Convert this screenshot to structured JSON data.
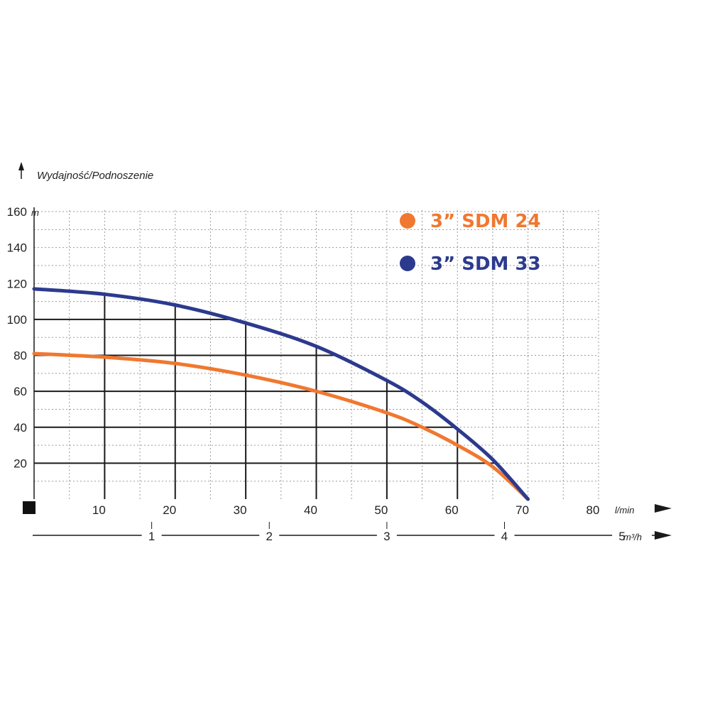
{
  "chart_data": {
    "type": "line",
    "ylabel": "Wydajność/Podnoszenie",
    "y_unit": "m",
    "x_unit": "l/min",
    "x2_unit": "m³/h",
    "xlim": [
      0,
      80
    ],
    "ylim": [
      0,
      160
    ],
    "x_ticks": [
      10,
      20,
      30,
      40,
      50,
      60,
      70,
      80
    ],
    "y_ticks": [
      20,
      40,
      60,
      80,
      100,
      120,
      140,
      160
    ],
    "x2_ticks": [
      1,
      2,
      3,
      4,
      5
    ],
    "x2_scale_lpm_per_unit": 16.667,
    "grid": true,
    "legend_position": "top-right",
    "series": [
      {
        "name": "3” SDM 24",
        "color": "#f07830",
        "x": [
          0,
          10,
          20,
          30,
          40,
          50,
          55,
          60,
          65,
          70
        ],
        "y": [
          81,
          79,
          75.5,
          69,
          60,
          48,
          40,
          30,
          18,
          0
        ]
      },
      {
        "name": "3” SDM 33",
        "color": "#2c3a8e",
        "x": [
          0,
          10,
          20,
          30,
          40,
          50,
          55,
          60,
          65,
          70
        ],
        "y": [
          117,
          114,
          108,
          98,
          85,
          66,
          54,
          39,
          22,
          0
        ]
      }
    ]
  }
}
